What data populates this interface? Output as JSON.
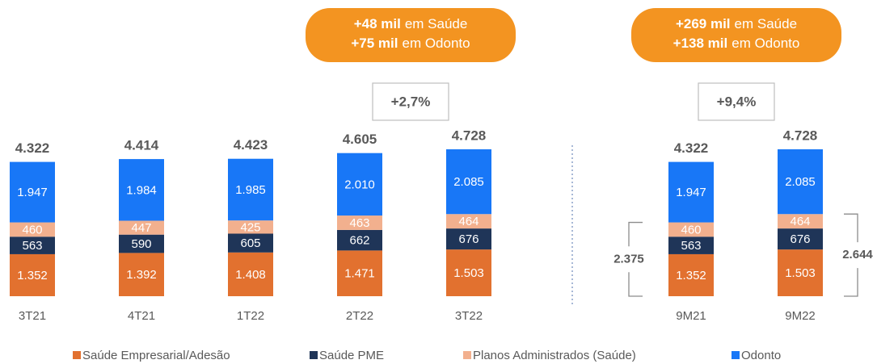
{
  "chart_data": {
    "type": "stacked_bar",
    "categories": [
      "3T21",
      "4T21",
      "1T22",
      "2T22",
      "3T22",
      "9M21",
      "9M22"
    ],
    "series": [
      {
        "name": "Saúde Empresarial/Adesão",
        "color": "#e2712f",
        "values": [
          1352,
          1392,
          1408,
          1471,
          1503,
          1352,
          1503
        ],
        "value_labels": [
          "1.352",
          "1.392",
          "1.408",
          "1.471",
          "1.503",
          "1.352",
          "1.503"
        ]
      },
      {
        "name": "Saúde PME",
        "color": "#1f3558",
        "values": [
          563,
          590,
          605,
          662,
          676,
          563,
          676
        ]
      },
      {
        "name": "Planos Administrados (Saúde)",
        "color": "#f2b08e",
        "values": [
          460,
          447,
          425,
          463,
          464,
          460,
          464
        ]
      },
      {
        "name": "Odonto",
        "color": "#1877f7",
        "values": [
          1947,
          1984,
          1985,
          2010,
          2085,
          1947,
          2085
        ],
        "value_labels": [
          "1.947",
          "1.984",
          "1.985",
          "2.010",
          "2.085",
          "1.947",
          "2.085"
        ]
      }
    ],
    "totals": {
      "values": [
        4322,
        4414,
        4423,
        4605,
        4728,
        4322,
        4728
      ],
      "value_labels": [
        "4.322",
        "4.414",
        "4.423",
        "4.605",
        "4.728",
        "4.322",
        "4.728"
      ]
    },
    "callouts": [
      {
        "lines": [
          {
            "bold": "+48 mil",
            "text": "em Saúde"
          },
          {
            "bold": "+75 mil",
            "text": "em Odonto"
          }
        ],
        "growth": "+2,7%"
      },
      {
        "lines": [
          {
            "bold": "+269 mil",
            "text": "em Saúde"
          },
          {
            "bold": "+138 mil",
            "text": "em Odonto"
          }
        ],
        "growth": "+9,4%"
      }
    ],
    "brackets": {
      "values": [
        2375,
        2644
      ],
      "value_labels": [
        "2.375",
        "2.644"
      ]
    }
  }
}
